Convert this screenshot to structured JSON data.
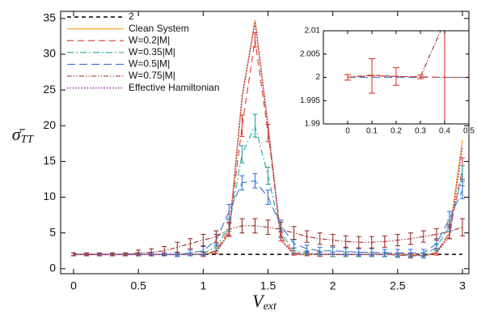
{
  "chart_data": [
    {
      "type": "line",
      "xlabel": "V",
      "xlabel_sub": "ext",
      "ylabel": "σ̄",
      "ylabel_sub": "TT",
      "xlim": [
        -0.1,
        3.05
      ],
      "ylim": [
        -0.7,
        36
      ],
      "xticks": [
        0,
        0.5,
        1,
        1.5,
        2,
        2.5,
        3
      ],
      "yticks": [
        0,
        5,
        10,
        15,
        20,
        25,
        30,
        35
      ],
      "legend": "upper left",
      "x": [
        0,
        0.1,
        0.2,
        0.3,
        0.4,
        0.5,
        0.6,
        0.7,
        0.8,
        0.9,
        1,
        1.1,
        1.2,
        1.3,
        1.4,
        1.5,
        1.6,
        1.7,
        1.8,
        1.9,
        2,
        2.1,
        2.2,
        2.3,
        2.4,
        2.5,
        2.6,
        2.7,
        2.8,
        2.9,
        3
      ],
      "series": [
        {
          "name": "2",
          "color": "#000000",
          "dash": "5 4",
          "width": 1.5,
          "values": [
            2,
            2,
            2,
            2,
            2,
            2,
            2,
            2,
            2,
            2,
            2,
            2,
            2,
            2,
            2,
            2,
            2,
            2,
            2,
            2,
            2,
            2,
            2,
            2,
            2,
            2,
            2,
            2,
            2,
            2,
            2
          ]
        },
        {
          "name": "Clean System",
          "color": "#f5a623",
          "dash": "",
          "width": 1.3,
          "values": [
            2,
            2,
            2,
            2,
            2,
            2,
            2,
            2,
            2,
            2,
            2,
            2.3,
            5,
            24,
            34.8,
            20,
            4,
            2,
            2,
            2,
            2,
            2,
            2,
            2,
            2,
            2,
            2,
            1.8,
            2.2,
            5,
            18
          ]
        },
        {
          "name": "W=0.2|M|",
          "color": "#e0392b",
          "dash": "8 5",
          "width": 1.1,
          "values": [
            2,
            2,
            2,
            2,
            2,
            2,
            2,
            2,
            2,
            2,
            2,
            2.5,
            5.5,
            20,
            32,
            19,
            4.5,
            2.2,
            2.1,
            2,
            2,
            2,
            2,
            2,
            2,
            1.9,
            1.8,
            1.8,
            2.3,
            5,
            14
          ],
          "errors": [
            0.2,
            0.2,
            0.2,
            0.2,
            0.2,
            0.2,
            0.2,
            0.2,
            0.2,
            0.2,
            0.3,
            0.4,
            0.8,
            1.5,
            1,
            1.2,
            0.6,
            0.3,
            0.3,
            0.3,
            0.3,
            0.3,
            0.3,
            0.3,
            0.3,
            0.3,
            0.3,
            0.3,
            0.4,
            0.8,
            1.5
          ]
        },
        {
          "name": "W=0.35|M|",
          "color": "#2aa89a",
          "dash": "8 3 2 3",
          "width": 1.1,
          "values": [
            2,
            2,
            2,
            2,
            2,
            2,
            2,
            2,
            2,
            2,
            2.1,
            3,
            6,
            16,
            20,
            13,
            5,
            2.5,
            2.2,
            2.1,
            2,
            2,
            2,
            2,
            2,
            1.9,
            1.9,
            1.8,
            3,
            6,
            13
          ],
          "errors": [
            0.2,
            0.2,
            0.2,
            0.2,
            0.2,
            0.2,
            0.2,
            0.2,
            0.2,
            0.2,
            0.3,
            0.5,
            0.8,
            1.2,
            1.6,
            1.2,
            0.7,
            0.4,
            0.3,
            0.3,
            0.3,
            0.3,
            0.3,
            0.3,
            0.3,
            0.3,
            0.3,
            0.3,
            0.5,
            0.8,
            1.4
          ]
        },
        {
          "name": "W=0.5|M|",
          "color": "#3a6fd8",
          "dash": "10 5",
          "width": 1.1,
          "values": [
            2,
            2,
            2,
            2,
            2,
            2,
            2,
            2,
            2,
            2.2,
            2.5,
            4,
            8,
            12,
            12.3,
            10,
            6,
            3.5,
            2.8,
            2.5,
            2.5,
            2.4,
            2.3,
            2.3,
            2.2,
            2.2,
            2.2,
            2.2,
            3.5,
            7,
            11
          ],
          "errors": [
            0.2,
            0.2,
            0.2,
            0.2,
            0.2,
            0.2,
            0.2,
            0.2,
            0.3,
            0.4,
            0.6,
            0.8,
            1,
            1,
            1,
            1,
            0.8,
            0.6,
            0.5,
            0.5,
            0.5,
            0.5,
            0.5,
            0.5,
            0.5,
            0.5,
            0.5,
            0.5,
            0.7,
            1,
            1.2
          ]
        },
        {
          "name": "W=0.75|M|",
          "color": "#9a2e26",
          "dash": "6 2 1.5 2 1.5 2",
          "width": 1.1,
          "values": [
            2,
            2,
            2,
            2,
            2,
            2.2,
            2.3,
            2.5,
            3,
            3.5,
            4,
            4.5,
            5.5,
            6,
            6,
            5.8,
            5.5,
            5,
            4.5,
            4.2,
            4,
            3.8,
            3.7,
            3.7,
            3.8,
            4,
            4.2,
            4.5,
            4.8,
            5.2,
            5.8
          ],
          "errors": [
            0.2,
            0.2,
            0.2,
            0.2,
            0.2,
            0.4,
            0.5,
            0.6,
            0.7,
            0.7,
            0.8,
            0.8,
            1,
            1,
            1,
            1,
            1,
            0.9,
            0.8,
            0.8,
            0.8,
            0.8,
            0.8,
            0.8,
            0.8,
            0.8,
            0.8,
            0.8,
            0.8,
            1,
            1.2
          ]
        },
        {
          "name": "Effective Hamiltonian",
          "color": "#9b3fa7",
          "dash": "1.5 2",
          "width": 1.8,
          "values": [
            2,
            2,
            2,
            2,
            2,
            2,
            2,
            2,
            2,
            2,
            2,
            2.3,
            5,
            24,
            34.5,
            20,
            4,
            2,
            2,
            2,
            2,
            2,
            2,
            2,
            2,
            2,
            2,
            1.8,
            2.2,
            4.5,
            17
          ]
        }
      ]
    },
    {
      "type": "line",
      "xlim": [
        -0.1,
        0.5
      ],
      "ylim": [
        1.99,
        2.01
      ],
      "xticks": [
        0,
        0.1,
        0.2,
        0.3,
        0.4,
        0.5
      ],
      "yticks": [
        1.99,
        1.995,
        2,
        2.005,
        2.01
      ],
      "x": [
        0,
        0.1,
        0.2,
        0.3,
        0.4,
        0.5
      ],
      "series": [
        {
          "color": "#3a6fd8",
          "dash": "10 5",
          "width": 1.1,
          "values": [
            2,
            2,
            2,
            2,
            2,
            2
          ]
        },
        {
          "color": "#9a2e26",
          "dash": "6 2 1.5 2",
          "width": 1.1,
          "values": [
            2,
            2.0005,
            2.0002,
            2.0001,
            2.012,
            2.02
          ]
        },
        {
          "color": "#e0392b",
          "dash": "8 5",
          "width": 1.1,
          "values": [
            2,
            2.0003,
            2.0002,
            2.0001,
            2,
            2
          ],
          "errors": [
            0.0006,
            0.0037,
            0.0019,
            0.0004,
            0.05,
            0
          ]
        }
      ]
    }
  ]
}
